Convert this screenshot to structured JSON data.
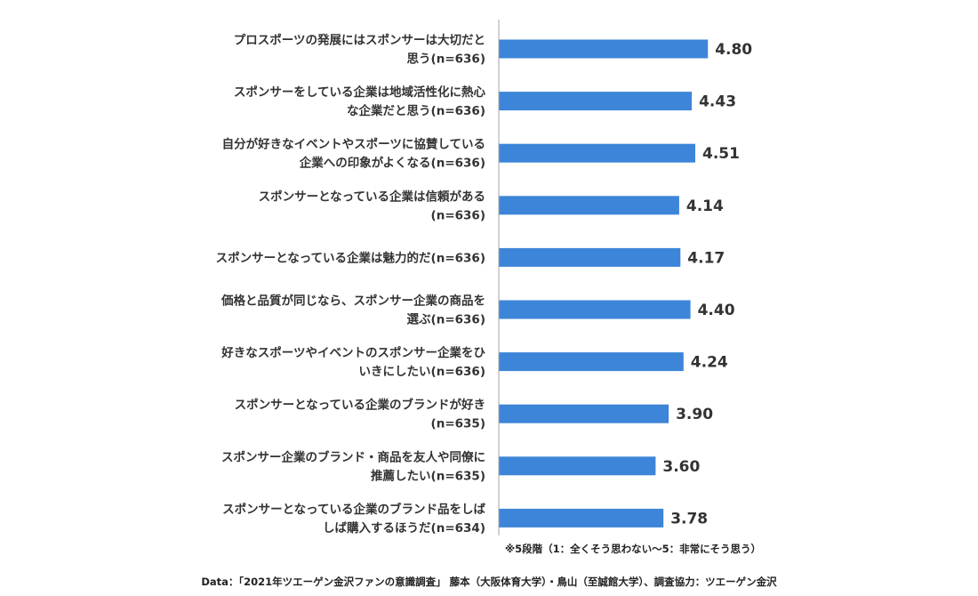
{
  "chart_data": {
    "type": "bar",
    "orientation": "horizontal",
    "categories": [
      [
        "プロスポーツの発展にはスポンサーは大切だと",
        "思う(n=636)"
      ],
      [
        "スポンサーをしている企業は地域活性化に熱心",
        "な企業だと思う(n=636)"
      ],
      [
        "自分が好きなイベントやスポーツに協賛している",
        "企業への印象がよくなる(n=636)"
      ],
      [
        "スポンサーとなっている企業は信頼がある",
        "(n=636)"
      ],
      [
        "スポンサーとなっている企業は魅力的だ(n=636)"
      ],
      [
        "価格と品質が同じなら、スポンサー企業の商品を",
        "選ぶ(n=636)"
      ],
      [
        "好きなスポーツやイベントのスポンサー企業をひ",
        "いきにしたい(n=636)"
      ],
      [
        "スポンサーとなっている企業のブランドが好き",
        "(n=635)"
      ],
      [
        "スポンサー企業のブランド・商品を友人や同僚に",
        "推薦したい(n=635)"
      ],
      [
        "スポンサーとなっている企業のブランド品をしば",
        "しば購入するほうだ(n=634)"
      ]
    ],
    "values": [
      4.8,
      4.43,
      4.51,
      4.14,
      4.17,
      4.4,
      4.24,
      3.9,
      3.6,
      3.78
    ],
    "value_labels": [
      "4.80",
      "4.43",
      "4.51",
      "4.14",
      "4.17",
      "4.40",
      "4.24",
      "3.90",
      "3.60",
      "3.78"
    ],
    "xlim": [
      0,
      5
    ],
    "grid": false,
    "bar_color": "#3d85d8",
    "axis_color": "#a6a6a6"
  },
  "note": "※5段階（1：全くそう思わない〜5：非常にそう思う）",
  "source": "Data：「2021年ツエーゲン金沢ファンの意識調査」 藤本（大阪体育大学）・鳥山（至誠館大学）、調査協力：ツエーゲン金沢"
}
